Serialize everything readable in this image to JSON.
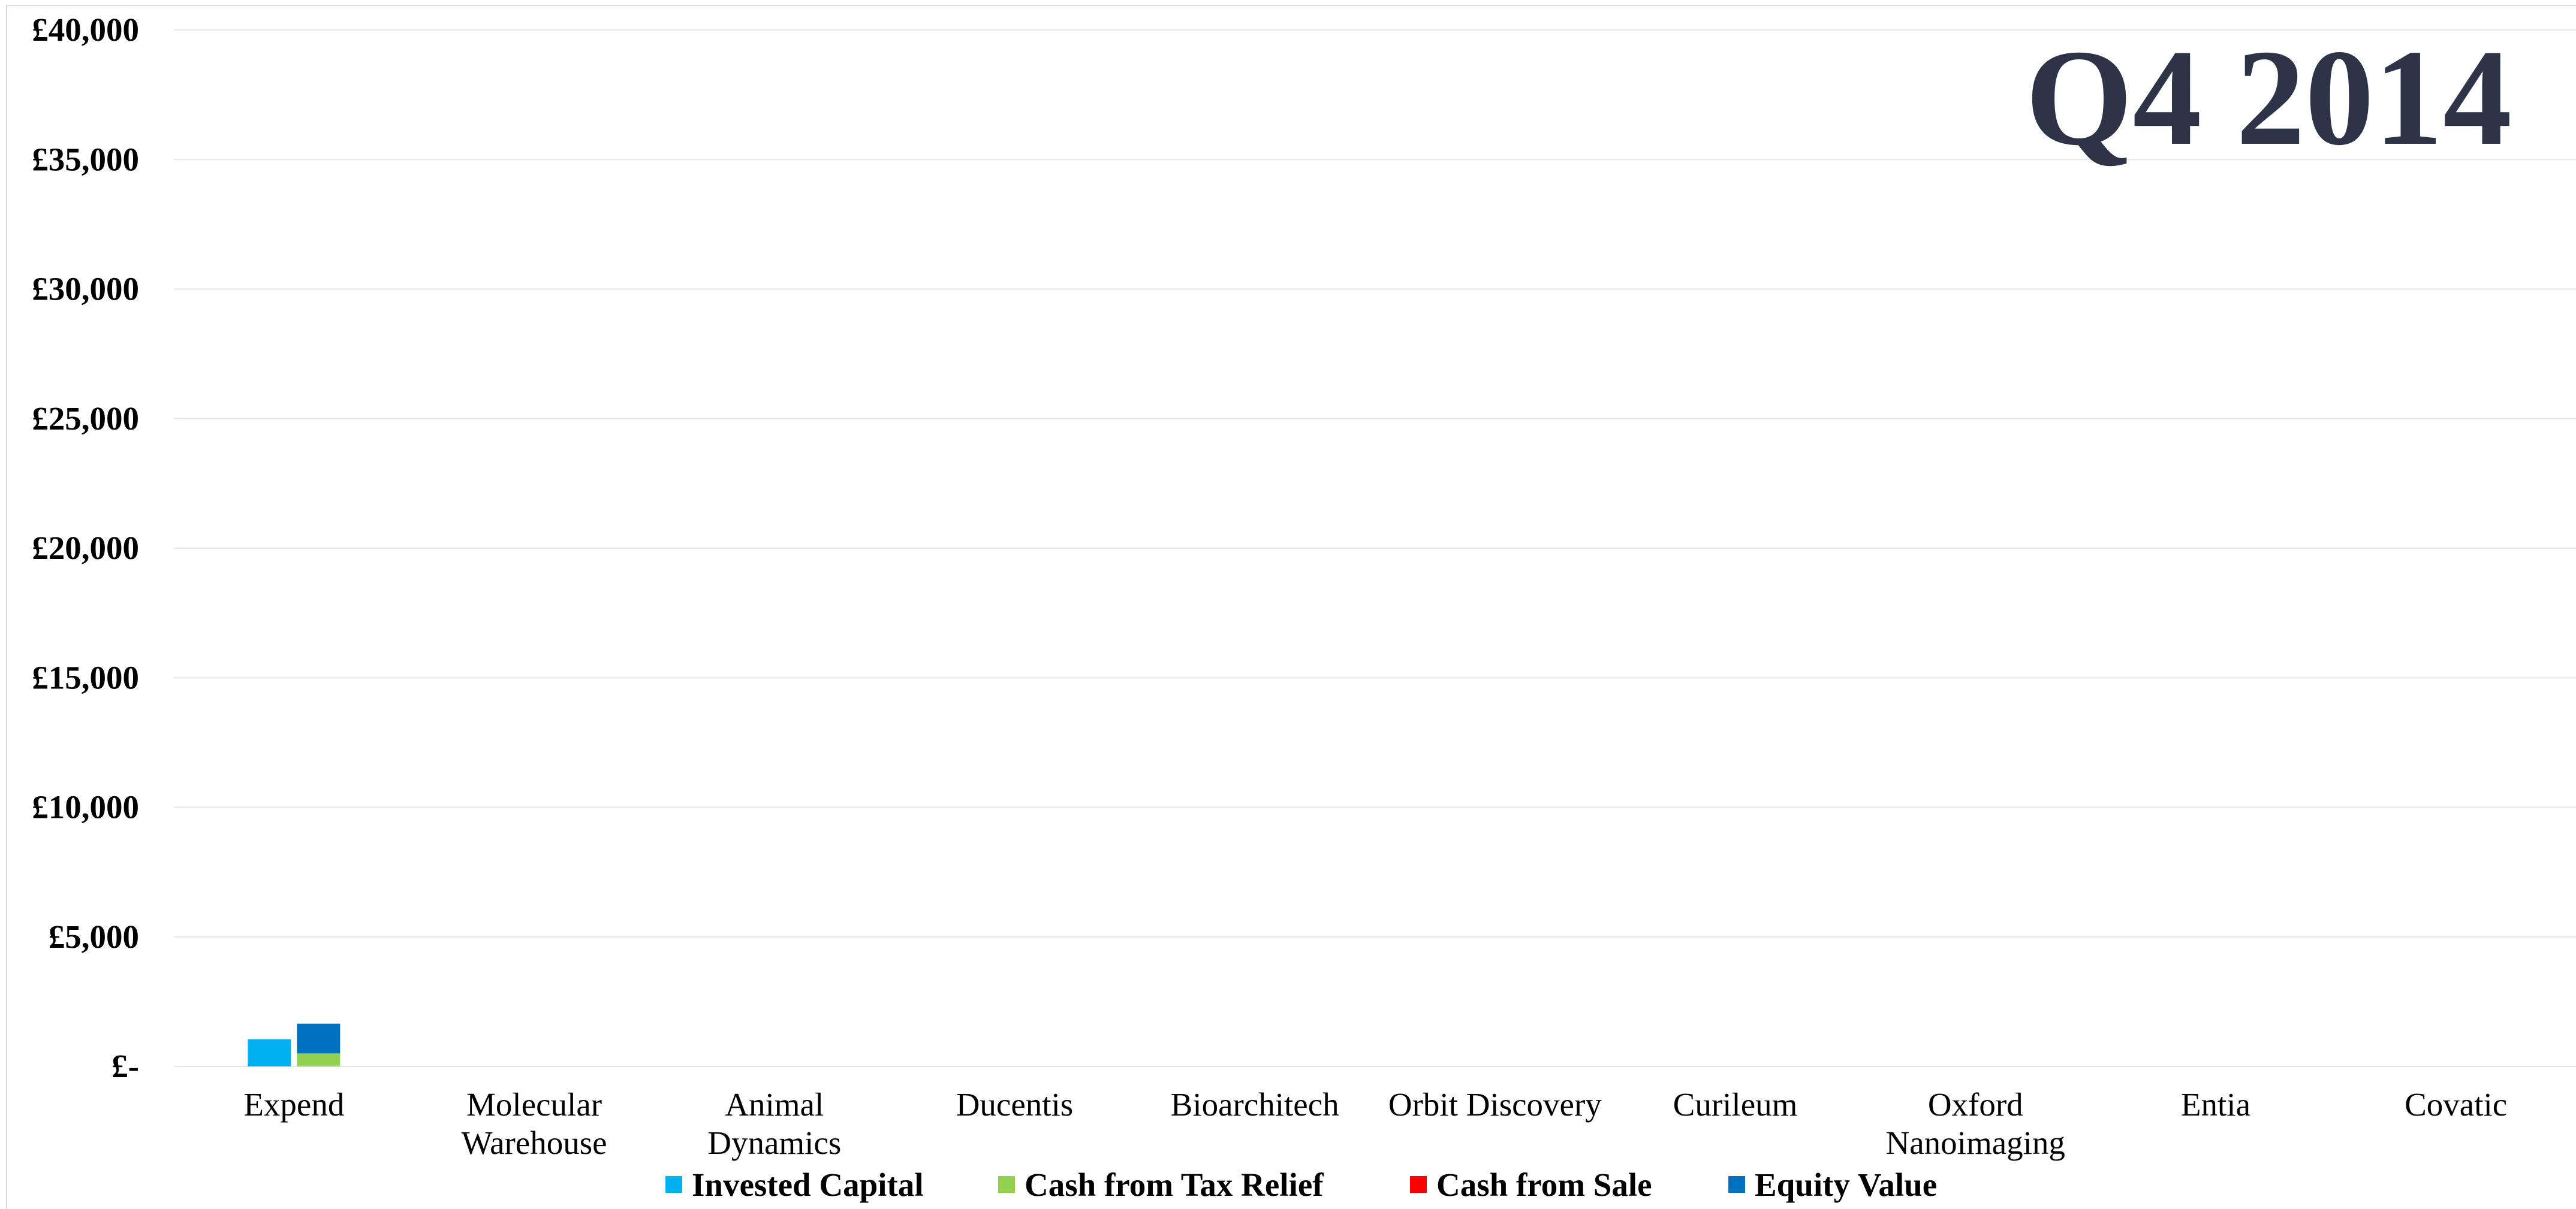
{
  "chart_data": {
    "type": "bar",
    "title": "Q4 2014",
    "stacked_groups": true,
    "categories": [
      "Expend",
      "Molecular Warehouse",
      "Animal Dynamics",
      "Ducentis",
      "Bioarchitech",
      "Orbit Discovery",
      "Curileum",
      "Oxford Nanoimaging",
      "Entia",
      "Covatic"
    ],
    "category_lines": [
      [
        "Expend"
      ],
      [
        "Molecular",
        "Warehouse"
      ],
      [
        "Animal",
        "Dynamics"
      ],
      [
        "Ducentis"
      ],
      [
        "Bioarchitech"
      ],
      [
        "Orbit Discovery"
      ],
      [
        "Curileum"
      ],
      [
        "Oxford",
        "Nanoimaging"
      ],
      [
        "Entia"
      ],
      [
        "Covatic"
      ]
    ],
    "series": [
      {
        "name": "Invested Capital",
        "color": "#00b0f0",
        "stack": "left",
        "values": [
          1050,
          0,
          0,
          0,
          0,
          0,
          0,
          0,
          0,
          0
        ]
      },
      {
        "name": "Cash from Tax Relief",
        "color": "#92d050",
        "stack": "right",
        "values": [
          500,
          0,
          0,
          0,
          0,
          0,
          0,
          0,
          0,
          0
        ]
      },
      {
        "name": "Cash from Sale",
        "color": "#ff0000",
        "stack": "right",
        "values": [
          0,
          0,
          0,
          0,
          0,
          0,
          0,
          0,
          0,
          0
        ]
      },
      {
        "name": "Equity Value",
        "color": "#0070c0",
        "stack": "right",
        "values": [
          1150,
          0,
          0,
          0,
          0,
          0,
          0,
          0,
          0,
          0
        ]
      }
    ],
    "ylim": [
      0,
      40000
    ],
    "yticks": [
      0,
      5000,
      10000,
      15000,
      20000,
      25000,
      30000,
      35000,
      40000
    ],
    "ytick_labels": [
      "£-",
      "£5,000",
      "£10,000",
      "£15,000",
      "£20,000",
      "£25,000",
      "£30,000",
      "£35,000",
      "£40,000"
    ],
    "xlabel": "",
    "ylabel": "",
    "grid": true,
    "legend_position": "bottom"
  },
  "colors": {
    "title": "#2e3448",
    "gridline": "#e6e6e6"
  }
}
